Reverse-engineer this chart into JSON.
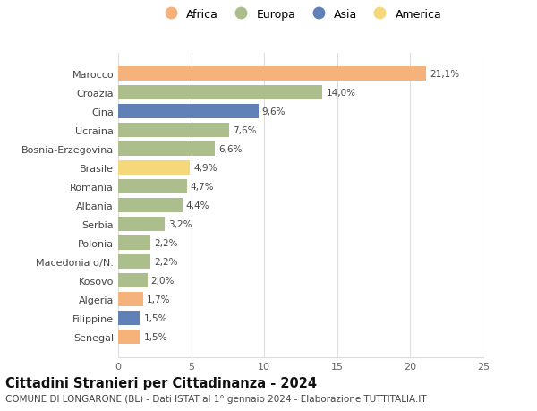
{
  "countries": [
    "Marocco",
    "Croazia",
    "Cina",
    "Ucraina",
    "Bosnia-Erzegovina",
    "Brasile",
    "Romania",
    "Albania",
    "Serbia",
    "Polonia",
    "Macedonia d/N.",
    "Kosovo",
    "Algeria",
    "Filippine",
    "Senegal"
  ],
  "values": [
    21.1,
    14.0,
    9.6,
    7.6,
    6.6,
    4.9,
    4.7,
    4.4,
    3.2,
    2.2,
    2.2,
    2.0,
    1.7,
    1.5,
    1.5
  ],
  "labels": [
    "21,1%",
    "14,0%",
    "9,6%",
    "7,6%",
    "6,6%",
    "4,9%",
    "4,7%",
    "4,4%",
    "3,2%",
    "2,2%",
    "2,2%",
    "2,0%",
    "1,7%",
    "1,5%",
    "1,5%"
  ],
  "continents": [
    "Africa",
    "Europa",
    "Asia",
    "Europa",
    "Europa",
    "America",
    "Europa",
    "Europa",
    "Europa",
    "Europa",
    "Europa",
    "Europa",
    "Africa",
    "Asia",
    "Africa"
  ],
  "continent_colors": {
    "Africa": "#F5B27A",
    "Europa": "#ABBE8C",
    "Asia": "#6080B8",
    "America": "#F5D87A"
  },
  "legend_order": [
    "Africa",
    "Europa",
    "Asia",
    "America"
  ],
  "title": "Cittadini Stranieri per Cittadinanza - 2024",
  "subtitle": "COMUNE DI LONGARONE (BL) - Dati ISTAT al 1° gennaio 2024 - Elaborazione TUTTITALIA.IT",
  "xlim": [
    0,
    25
  ],
  "xticks": [
    0,
    5,
    10,
    15,
    20,
    25
  ],
  "background_color": "#FFFFFF",
  "grid_color": "#DDDDDD",
  "bar_height": 0.75,
  "title_fontsize": 10.5,
  "subtitle_fontsize": 7.5,
  "label_fontsize": 7.5,
  "tick_fontsize": 8,
  "legend_fontsize": 9
}
